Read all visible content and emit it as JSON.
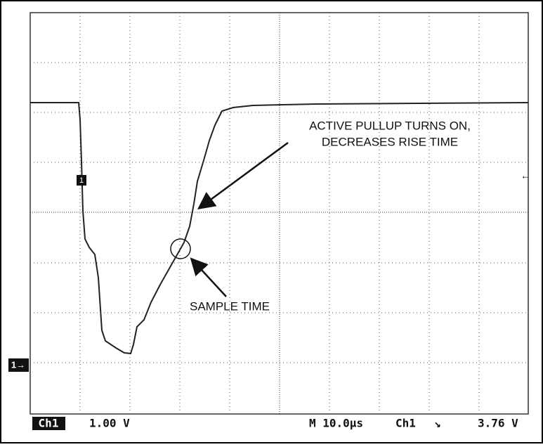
{
  "annotations": {
    "pullup": [
      "ACTIVE PULLUP TURNS ON,",
      "DECREASES RISE TIME"
    ],
    "sample": "SAMPLE TIME"
  },
  "markers": {
    "trigger": "1",
    "channel_ref": "1→",
    "trigger_level": "←"
  },
  "status_bar": {
    "channel": "Ch1",
    "volts_per_div": "1.00 V",
    "timebase": "M 10.0µs",
    "trigger_channel": "Ch1",
    "trigger_slope": "↘",
    "trigger_level": "3.76 V"
  }
}
